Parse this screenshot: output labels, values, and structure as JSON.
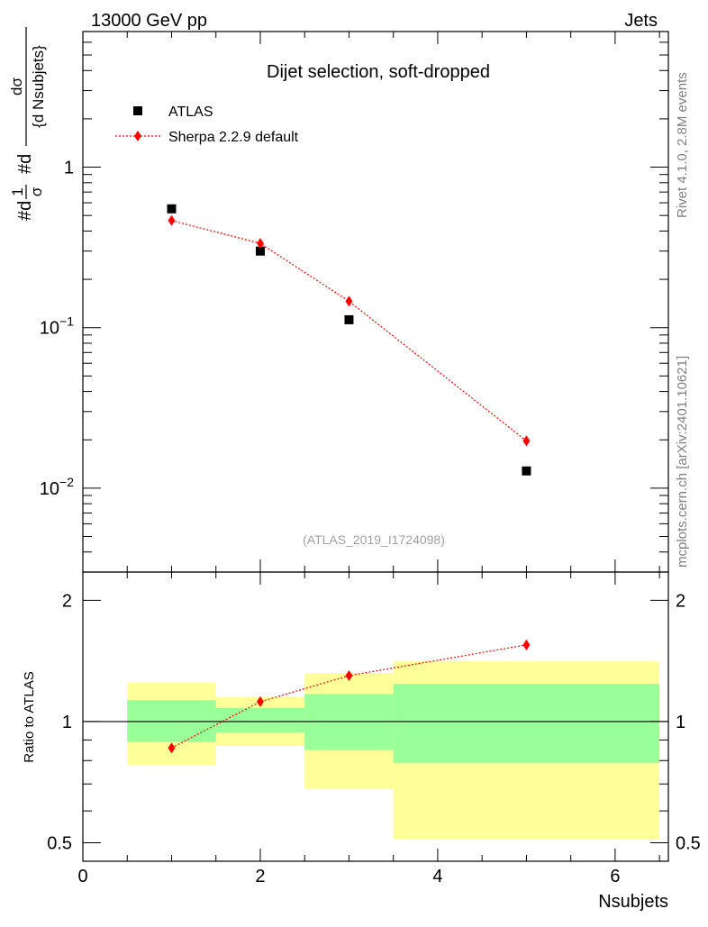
{
  "header": {
    "left": "13000 GeV pp",
    "right": "Jets"
  },
  "side_labels": {
    "top": "Rivet 4.1.0,  2.8M events",
    "bottom": "mcplots.cern.ch [arXiv:2401.10621]"
  },
  "chart_data": {
    "type": "scatter",
    "title": "Dijet selection, soft-dropped",
    "analysis_id": "(ATLAS_2019_I1724098)",
    "xlabel": "Nsubjets",
    "ylabel": {
      "prefix": "#d",
      "frac_num": "1",
      "frac_den": "σ",
      "mid": "#d",
      "num": "dσ",
      "den": "{d Nsubjets}"
    },
    "xlim": [
      0,
      6.6
    ],
    "ylim": [
      0.003,
      7.0
    ],
    "yscale": "log",
    "x_ticks": [
      "0",
      "2",
      "4",
      "6"
    ],
    "y_ticks": [
      {
        "value": 1,
        "label": "1"
      },
      {
        "value": 0.1,
        "base": "10",
        "exp": "−1"
      },
      {
        "value": 0.01,
        "base": "10",
        "exp": "−2"
      }
    ],
    "legend": {
      "position": "top-left"
    },
    "series": [
      {
        "name": "ATLAS",
        "marker": "square",
        "color": "#000000",
        "x": [
          1,
          2,
          3,
          5
        ],
        "y": [
          0.55,
          0.3,
          0.112,
          0.0128
        ]
      },
      {
        "name": "Sherpa 2.2.9 default",
        "marker": "diamond",
        "line": "dotted",
        "color": "#ff0000",
        "x": [
          1,
          2,
          3,
          5
        ],
        "y": [
          0.465,
          0.335,
          0.146,
          0.0197
        ]
      }
    ],
    "ratio": {
      "ylabel": "Ratio to ATLAS",
      "ylim": [
        0.45,
        2.35
      ],
      "y_ticks": [
        {
          "value": 0.5,
          "label": "0.5"
        },
        {
          "value": 1,
          "label": "1"
        },
        {
          "value": 2,
          "label": "2"
        }
      ],
      "bins": [
        {
          "x_lo": 0.5,
          "x_hi": 1.5,
          "stat_lo": 0.89,
          "stat_hi": 1.13,
          "tot_lo": 0.78,
          "tot_hi": 1.25
        },
        {
          "x_lo": 1.5,
          "x_hi": 2.5,
          "stat_lo": 0.94,
          "stat_hi": 1.08,
          "tot_lo": 0.87,
          "tot_hi": 1.15
        },
        {
          "x_lo": 2.5,
          "x_hi": 3.5,
          "stat_lo": 0.85,
          "stat_hi": 1.17,
          "tot_lo": 0.68,
          "tot_hi": 1.32
        },
        {
          "x_lo": 3.5,
          "x_hi": 6.5,
          "stat_lo": 0.79,
          "stat_hi": 1.24,
          "tot_lo": 0.51,
          "tot_hi": 1.41
        }
      ],
      "points": {
        "x": [
          1,
          2,
          3,
          5
        ],
        "y": [
          0.86,
          1.12,
          1.3,
          1.55
        ]
      },
      "colors": {
        "stat": "#99ff99",
        "total": "#ffff99",
        "ratio": "#ff0000"
      }
    }
  }
}
